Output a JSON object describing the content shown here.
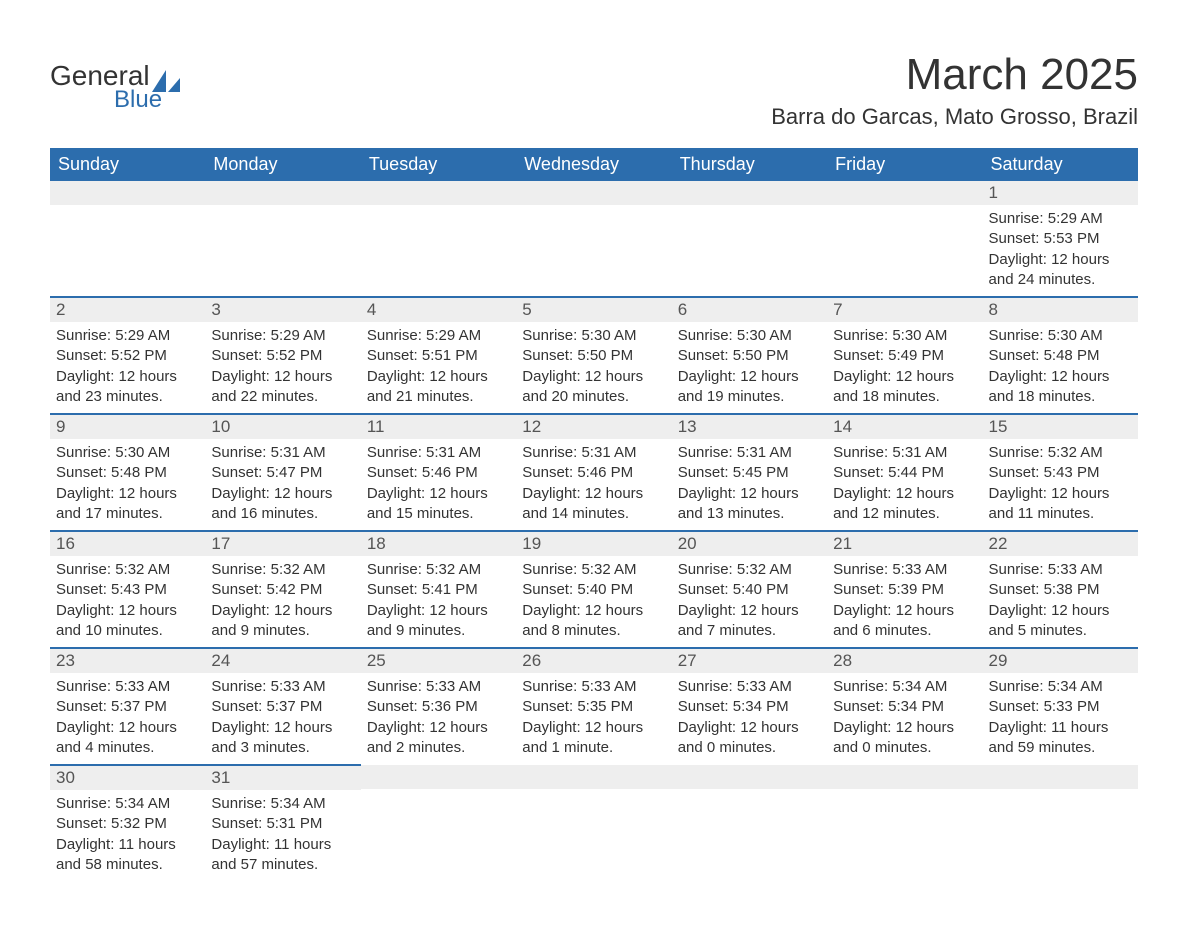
{
  "logo": {
    "line1": "General",
    "line2": "Blue",
    "icon_color": "#2c6dad"
  },
  "title": "March 2025",
  "location": "Barra do Garcas, Mato Grosso, Brazil",
  "colors": {
    "header_bg": "#2c6dad",
    "header_text": "#ffffff",
    "daynum_bg": "#eeeeee",
    "row_border": "#2c6dad",
    "body_text": "#333333"
  },
  "weekdays": [
    "Sunday",
    "Monday",
    "Tuesday",
    "Wednesday",
    "Thursday",
    "Friday",
    "Saturday"
  ],
  "calendar": {
    "leading_blanks": 6,
    "days": [
      {
        "n": 1,
        "sunrise": "5:29 AM",
        "sunset": "5:53 PM",
        "daylight": "12 hours and 24 minutes."
      },
      {
        "n": 2,
        "sunrise": "5:29 AM",
        "sunset": "5:52 PM",
        "daylight": "12 hours and 23 minutes."
      },
      {
        "n": 3,
        "sunrise": "5:29 AM",
        "sunset": "5:52 PM",
        "daylight": "12 hours and 22 minutes."
      },
      {
        "n": 4,
        "sunrise": "5:29 AM",
        "sunset": "5:51 PM",
        "daylight": "12 hours and 21 minutes."
      },
      {
        "n": 5,
        "sunrise": "5:30 AM",
        "sunset": "5:50 PM",
        "daylight": "12 hours and 20 minutes."
      },
      {
        "n": 6,
        "sunrise": "5:30 AM",
        "sunset": "5:50 PM",
        "daylight": "12 hours and 19 minutes."
      },
      {
        "n": 7,
        "sunrise": "5:30 AM",
        "sunset": "5:49 PM",
        "daylight": "12 hours and 18 minutes."
      },
      {
        "n": 8,
        "sunrise": "5:30 AM",
        "sunset": "5:48 PM",
        "daylight": "12 hours and 18 minutes."
      },
      {
        "n": 9,
        "sunrise": "5:30 AM",
        "sunset": "5:48 PM",
        "daylight": "12 hours and 17 minutes."
      },
      {
        "n": 10,
        "sunrise": "5:31 AM",
        "sunset": "5:47 PM",
        "daylight": "12 hours and 16 minutes."
      },
      {
        "n": 11,
        "sunrise": "5:31 AM",
        "sunset": "5:46 PM",
        "daylight": "12 hours and 15 minutes."
      },
      {
        "n": 12,
        "sunrise": "5:31 AM",
        "sunset": "5:46 PM",
        "daylight": "12 hours and 14 minutes."
      },
      {
        "n": 13,
        "sunrise": "5:31 AM",
        "sunset": "5:45 PM",
        "daylight": "12 hours and 13 minutes."
      },
      {
        "n": 14,
        "sunrise": "5:31 AM",
        "sunset": "5:44 PM",
        "daylight": "12 hours and 12 minutes."
      },
      {
        "n": 15,
        "sunrise": "5:32 AM",
        "sunset": "5:43 PM",
        "daylight": "12 hours and 11 minutes."
      },
      {
        "n": 16,
        "sunrise": "5:32 AM",
        "sunset": "5:43 PM",
        "daylight": "12 hours and 10 minutes."
      },
      {
        "n": 17,
        "sunrise": "5:32 AM",
        "sunset": "5:42 PM",
        "daylight": "12 hours and 9 minutes."
      },
      {
        "n": 18,
        "sunrise": "5:32 AM",
        "sunset": "5:41 PM",
        "daylight": "12 hours and 9 minutes."
      },
      {
        "n": 19,
        "sunrise": "5:32 AM",
        "sunset": "5:40 PM",
        "daylight": "12 hours and 8 minutes."
      },
      {
        "n": 20,
        "sunrise": "5:32 AM",
        "sunset": "5:40 PM",
        "daylight": "12 hours and 7 minutes."
      },
      {
        "n": 21,
        "sunrise": "5:33 AM",
        "sunset": "5:39 PM",
        "daylight": "12 hours and 6 minutes."
      },
      {
        "n": 22,
        "sunrise": "5:33 AM",
        "sunset": "5:38 PM",
        "daylight": "12 hours and 5 minutes."
      },
      {
        "n": 23,
        "sunrise": "5:33 AM",
        "sunset": "5:37 PM",
        "daylight": "12 hours and 4 minutes."
      },
      {
        "n": 24,
        "sunrise": "5:33 AM",
        "sunset": "5:37 PM",
        "daylight": "12 hours and 3 minutes."
      },
      {
        "n": 25,
        "sunrise": "5:33 AM",
        "sunset": "5:36 PM",
        "daylight": "12 hours and 2 minutes."
      },
      {
        "n": 26,
        "sunrise": "5:33 AM",
        "sunset": "5:35 PM",
        "daylight": "12 hours and 1 minute."
      },
      {
        "n": 27,
        "sunrise": "5:33 AM",
        "sunset": "5:34 PM",
        "daylight": "12 hours and 0 minutes."
      },
      {
        "n": 28,
        "sunrise": "5:34 AM",
        "sunset": "5:34 PM",
        "daylight": "12 hours and 0 minutes."
      },
      {
        "n": 29,
        "sunrise": "5:34 AM",
        "sunset": "5:33 PM",
        "daylight": "11 hours and 59 minutes."
      },
      {
        "n": 30,
        "sunrise": "5:34 AM",
        "sunset": "5:32 PM",
        "daylight": "11 hours and 58 minutes."
      },
      {
        "n": 31,
        "sunrise": "5:34 AM",
        "sunset": "5:31 PM",
        "daylight": "11 hours and 57 minutes."
      }
    ]
  },
  "labels": {
    "sunrise": "Sunrise: ",
    "sunset": "Sunset: ",
    "daylight": "Daylight: "
  }
}
